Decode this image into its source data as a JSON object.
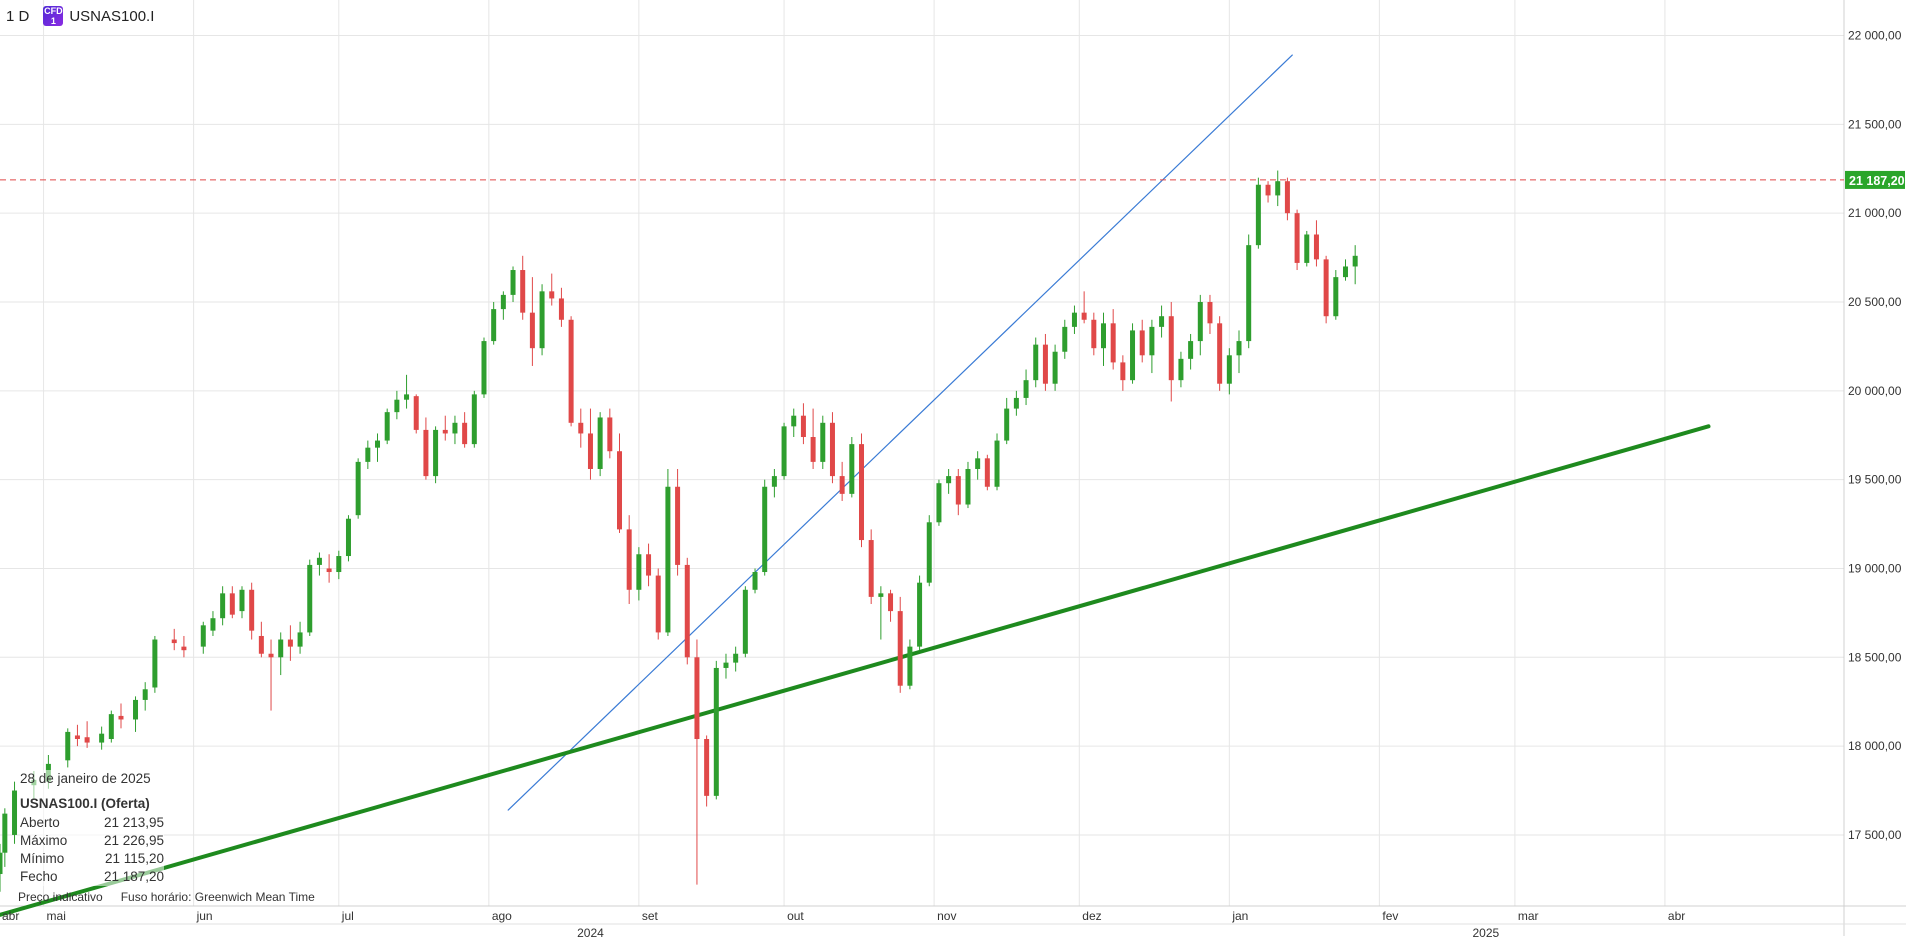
{
  "header": {
    "timeframe": "1 D",
    "symbol_badge": "CFD",
    "symbol": "USNAS100.I"
  },
  "info_panel": {
    "date": "28 de janeiro de 2025",
    "instrument": "USNAS100.I (Oferta)",
    "rows": [
      {
        "label": "Aberto",
        "value": "21 213,95"
      },
      {
        "label": "Máximo",
        "value": "21 226,95"
      },
      {
        "label": "Mínimo",
        "value": "21 115,20"
      },
      {
        "label": "Fecho",
        "value": "21 187,20"
      }
    ]
  },
  "footer": {
    "indicative": "Preço indicativo",
    "timezone": "Fuso horário: Greenwich Mean Time"
  },
  "colors": {
    "up": "#2e9e2e",
    "down": "#e04848",
    "trend_blue": "#3a7bd5",
    "trend_green": "#1e8a1e",
    "price_line": "#e04848",
    "price_tag_bg": "#2aa52a",
    "grid": "#e6e6e6"
  },
  "chart_data": {
    "type": "candlestick",
    "y_ticks": [
      17500,
      18000,
      18500,
      19000,
      19500,
      20000,
      20500,
      21000,
      21500,
      22000
    ],
    "y_tick_labels": [
      "17 500,00",
      "18 000,00",
      "18 500,00",
      "19 000,00",
      "19 500,00",
      "20 000,00",
      "20 500,00",
      "21 000,00",
      "21 500,00",
      "22 000,00"
    ],
    "ylim": [
      17100,
      22200
    ],
    "xlim": [
      "2024-04-22",
      "2025-05-08"
    ],
    "x_month_ticks": [
      {
        "date": "2024-05-01",
        "label": "mai"
      },
      {
        "date": "2024-06-01",
        "label": "jun"
      },
      {
        "date": "2024-07-01",
        "label": "jul"
      },
      {
        "date": "2024-08-01",
        "label": "ago"
      },
      {
        "date": "2024-09-01",
        "label": "set"
      },
      {
        "date": "2024-10-01",
        "label": "out"
      },
      {
        "date": "2024-11-01",
        "label": "nov"
      },
      {
        "date": "2024-12-01",
        "label": "dez"
      },
      {
        "date": "2025-01-01",
        "label": "jan"
      },
      {
        "date": "2025-02-01",
        "label": "fev"
      },
      {
        "date": "2025-03-01",
        "label": "mar"
      },
      {
        "date": "2025-04-01",
        "label": "abr"
      }
    ],
    "x_edge_label": {
      "date": "2024-04-22",
      "label": "abr"
    },
    "x_year_ticks": [
      {
        "date": "2024-08-22",
        "label": "2024"
      },
      {
        "date": "2025-02-23",
        "label": "2025"
      }
    ],
    "last_price": 21187.2,
    "last_price_label": "21 187,20",
    "trendlines": [
      {
        "name": "short-trend",
        "color": "blue",
        "from": [
          "2024-08-05",
          17640
        ],
        "to": [
          "2025-01-14",
          21890
        ]
      },
      {
        "name": "long-trend",
        "color": "green",
        "from": [
          "2024-04-22",
          17050
        ],
        "to": [
          "2025-04-10",
          19800
        ]
      }
    ],
    "candles": [
      {
        "d": "2024-04-22",
        "o": 17280,
        "h": 17450,
        "l": 17180,
        "c": 17400
      },
      {
        "d": "2024-04-23",
        "o": 17400,
        "h": 17650,
        "l": 17320,
        "c": 17620
      },
      {
        "d": "2024-04-25",
        "o": 17500,
        "h": 17800,
        "l": 17450,
        "c": 17750
      },
      {
        "d": "2024-04-29",
        "o": 17780,
        "h": 17860,
        "l": 17700,
        "c": 17810
      },
      {
        "d": "2024-05-02",
        "o": 17800,
        "h": 17950,
        "l": 17760,
        "c": 17900
      },
      {
        "d": "2024-05-06",
        "o": 17920,
        "h": 18100,
        "l": 17880,
        "c": 18080
      },
      {
        "d": "2024-05-08",
        "o": 18060,
        "h": 18120,
        "l": 18000,
        "c": 18040
      },
      {
        "d": "2024-05-10",
        "o": 18050,
        "h": 18140,
        "l": 17990,
        "c": 18020
      },
      {
        "d": "2024-05-13",
        "o": 18020,
        "h": 18110,
        "l": 17980,
        "c": 18070
      },
      {
        "d": "2024-05-15",
        "o": 18040,
        "h": 18200,
        "l": 18020,
        "c": 18180
      },
      {
        "d": "2024-05-17",
        "o": 18170,
        "h": 18240,
        "l": 18100,
        "c": 18150
      },
      {
        "d": "2024-05-20",
        "o": 18150,
        "h": 18280,
        "l": 18080,
        "c": 18260
      },
      {
        "d": "2024-05-22",
        "o": 18260,
        "h": 18360,
        "l": 18200,
        "c": 18320
      },
      {
        "d": "2024-05-24",
        "o": 18330,
        "h": 18620,
        "l": 18300,
        "c": 18600
      },
      {
        "d": "2024-05-28",
        "o": 18600,
        "h": 18660,
        "l": 18540,
        "c": 18580
      },
      {
        "d": "2024-05-30",
        "o": 18560,
        "h": 18620,
        "l": 18500,
        "c": 18540
      },
      {
        "d": "2024-06-03",
        "o": 18560,
        "h": 18700,
        "l": 18520,
        "c": 18680
      },
      {
        "d": "2024-06-05",
        "o": 18650,
        "h": 18760,
        "l": 18620,
        "c": 18720
      },
      {
        "d": "2024-06-07",
        "o": 18720,
        "h": 18900,
        "l": 18680,
        "c": 18860
      },
      {
        "d": "2024-06-09",
        "o": 18860,
        "h": 18900,
        "l": 18720,
        "c": 18740
      },
      {
        "d": "2024-06-11",
        "o": 18760,
        "h": 18900,
        "l": 18720,
        "c": 18880
      },
      {
        "d": "2024-06-13",
        "o": 18880,
        "h": 18920,
        "l": 18600,
        "c": 18650
      },
      {
        "d": "2024-06-15",
        "o": 18620,
        "h": 18700,
        "l": 18500,
        "c": 18520
      },
      {
        "d": "2024-06-17",
        "o": 18520,
        "h": 18600,
        "l": 18200,
        "c": 18500
      },
      {
        "d": "2024-06-19",
        "o": 18500,
        "h": 18640,
        "l": 18400,
        "c": 18600
      },
      {
        "d": "2024-06-21",
        "o": 18600,
        "h": 18680,
        "l": 18480,
        "c": 18560
      },
      {
        "d": "2024-06-23",
        "o": 18560,
        "h": 18700,
        "l": 18520,
        "c": 18640
      },
      {
        "d": "2024-06-25",
        "o": 18640,
        "h": 19050,
        "l": 18620,
        "c": 19020
      },
      {
        "d": "2024-06-27",
        "o": 19020,
        "h": 19090,
        "l": 18960,
        "c": 19060
      },
      {
        "d": "2024-06-29",
        "o": 19000,
        "h": 19080,
        "l": 18920,
        "c": 18980
      },
      {
        "d": "2024-07-01",
        "o": 18980,
        "h": 19100,
        "l": 18940,
        "c": 19070
      },
      {
        "d": "2024-07-03",
        "o": 19070,
        "h": 19300,
        "l": 19040,
        "c": 19280
      },
      {
        "d": "2024-07-05",
        "o": 19300,
        "h": 19620,
        "l": 19280,
        "c": 19600
      },
      {
        "d": "2024-07-07",
        "o": 19600,
        "h": 19720,
        "l": 19560,
        "c": 19680
      },
      {
        "d": "2024-07-09",
        "o": 19680,
        "h": 19760,
        "l": 19600,
        "c": 19720
      },
      {
        "d": "2024-07-11",
        "o": 19720,
        "h": 19900,
        "l": 19700,
        "c": 19880
      },
      {
        "d": "2024-07-13",
        "o": 19880,
        "h": 20000,
        "l": 19840,
        "c": 19950
      },
      {
        "d": "2024-07-15",
        "o": 19950,
        "h": 20090,
        "l": 19900,
        "c": 19980
      },
      {
        "d": "2024-07-17",
        "o": 19970,
        "h": 19980,
        "l": 19760,
        "c": 19780
      },
      {
        "d": "2024-07-19",
        "o": 19780,
        "h": 19850,
        "l": 19500,
        "c": 19520
      },
      {
        "d": "2024-07-21",
        "o": 19520,
        "h": 19800,
        "l": 19480,
        "c": 19780
      },
      {
        "d": "2024-07-23",
        "o": 19780,
        "h": 19860,
        "l": 19720,
        "c": 19760
      },
      {
        "d": "2024-07-25",
        "o": 19760,
        "h": 19860,
        "l": 19700,
        "c": 19820
      },
      {
        "d": "2024-07-27",
        "o": 19820,
        "h": 19880,
        "l": 19680,
        "c": 19700
      },
      {
        "d": "2024-07-29",
        "o": 19700,
        "h": 20000,
        "l": 19680,
        "c": 19980
      },
      {
        "d": "2024-07-31",
        "o": 19980,
        "h": 20300,
        "l": 19960,
        "c": 20280
      },
      {
        "d": "2024-08-02",
        "o": 20280,
        "h": 20500,
        "l": 20260,
        "c": 20460
      },
      {
        "d": "2024-08-04",
        "o": 20460,
        "h": 20560,
        "l": 20400,
        "c": 20540
      },
      {
        "d": "2024-08-06",
        "o": 20540,
        "h": 20700,
        "l": 20500,
        "c": 20680
      },
      {
        "d": "2024-08-08",
        "o": 20680,
        "h": 20760,
        "l": 20400,
        "c": 20440
      },
      {
        "d": "2024-08-10",
        "o": 20440,
        "h": 20640,
        "l": 20140,
        "c": 20240
      },
      {
        "d": "2024-08-12",
        "o": 20240,
        "h": 20600,
        "l": 20200,
        "c": 20560
      },
      {
        "d": "2024-08-14",
        "o": 20560,
        "h": 20660,
        "l": 20480,
        "c": 20520
      },
      {
        "d": "2024-08-16",
        "o": 20520,
        "h": 20580,
        "l": 20360,
        "c": 20400
      },
      {
        "d": "2024-08-18",
        "o": 20400,
        "h": 20420,
        "l": 19800,
        "c": 19820
      },
      {
        "d": "2024-08-20",
        "o": 19820,
        "h": 19900,
        "l": 19680,
        "c": 19760
      },
      {
        "d": "2024-08-22",
        "o": 19760,
        "h": 19900,
        "l": 19500,
        "c": 19560
      },
      {
        "d": "2024-08-24",
        "o": 19560,
        "h": 19880,
        "l": 19520,
        "c": 19850
      },
      {
        "d": "2024-08-26",
        "o": 19850,
        "h": 19900,
        "l": 19620,
        "c": 19660
      },
      {
        "d": "2024-08-28",
        "o": 19660,
        "h": 19760,
        "l": 19200,
        "c": 19220
      },
      {
        "d": "2024-08-30",
        "o": 19220,
        "h": 19300,
        "l": 18800,
        "c": 18880
      },
      {
        "d": "2024-09-01",
        "o": 18880,
        "h": 19120,
        "l": 18820,
        "c": 19080
      },
      {
        "d": "2024-09-03",
        "o": 19080,
        "h": 19140,
        "l": 18900,
        "c": 18960
      },
      {
        "d": "2024-09-05",
        "o": 18960,
        "h": 19000,
        "l": 18600,
        "c": 18640
      },
      {
        "d": "2024-09-07",
        "o": 18640,
        "h": 19560,
        "l": 18620,
        "c": 19460
      },
      {
        "d": "2024-09-09",
        "o": 19460,
        "h": 19560,
        "l": 18960,
        "c": 19020
      },
      {
        "d": "2024-09-11",
        "o": 19020,
        "h": 19060,
        "l": 18460,
        "c": 18500
      },
      {
        "d": "2024-09-13",
        "o": 18500,
        "h": 18600,
        "l": 17220,
        "c": 18040
      },
      {
        "d": "2024-09-15",
        "o": 18040,
        "h": 18060,
        "l": 17660,
        "c": 17720
      },
      {
        "d": "2024-09-17",
        "o": 17720,
        "h": 18480,
        "l": 17700,
        "c": 18440
      },
      {
        "d": "2024-09-19",
        "o": 18440,
        "h": 18520,
        "l": 18380,
        "c": 18470
      },
      {
        "d": "2024-09-21",
        "o": 18470,
        "h": 18560,
        "l": 18420,
        "c": 18520
      },
      {
        "d": "2024-09-23",
        "o": 18520,
        "h": 18900,
        "l": 18500,
        "c": 18880
      },
      {
        "d": "2024-09-25",
        "o": 18880,
        "h": 19000,
        "l": 18860,
        "c": 18980
      },
      {
        "d": "2024-09-27",
        "o": 18980,
        "h": 19500,
        "l": 18960,
        "c": 19460
      },
      {
        "d": "2024-09-29",
        "o": 19460,
        "h": 19560,
        "l": 19400,
        "c": 19520
      },
      {
        "d": "2024-10-01",
        "o": 19520,
        "h": 19820,
        "l": 19500,
        "c": 19800
      },
      {
        "d": "2024-10-03",
        "o": 19800,
        "h": 19900,
        "l": 19740,
        "c": 19860
      },
      {
        "d": "2024-10-05",
        "o": 19860,
        "h": 19930,
        "l": 19700,
        "c": 19740
      },
      {
        "d": "2024-10-07",
        "o": 19740,
        "h": 19900,
        "l": 19560,
        "c": 19600
      },
      {
        "d": "2024-10-09",
        "o": 19600,
        "h": 19860,
        "l": 19560,
        "c": 19820
      },
      {
        "d": "2024-10-11",
        "o": 19820,
        "h": 19880,
        "l": 19480,
        "c": 19520
      },
      {
        "d": "2024-10-13",
        "o": 19520,
        "h": 19600,
        "l": 19380,
        "c": 19420
      },
      {
        "d": "2024-10-15",
        "o": 19420,
        "h": 19740,
        "l": 19400,
        "c": 19700
      },
      {
        "d": "2024-10-17",
        "o": 19700,
        "h": 19760,
        "l": 19120,
        "c": 19160
      },
      {
        "d": "2024-10-19",
        "o": 19160,
        "h": 19220,
        "l": 18800,
        "c": 18840
      },
      {
        "d": "2024-10-21",
        "o": 18840,
        "h": 18900,
        "l": 18600,
        "c": 18860
      },
      {
        "d": "2024-10-23",
        "o": 18860,
        "h": 18880,
        "l": 18700,
        "c": 18760
      },
      {
        "d": "2024-10-25",
        "o": 18760,
        "h": 18840,
        "l": 18300,
        "c": 18340
      },
      {
        "d": "2024-10-27",
        "o": 18340,
        "h": 18600,
        "l": 18320,
        "c": 18560
      },
      {
        "d": "2024-10-29",
        "o": 18560,
        "h": 18960,
        "l": 18540,
        "c": 18920
      },
      {
        "d": "2024-10-31",
        "o": 18920,
        "h": 19300,
        "l": 18900,
        "c": 19260
      },
      {
        "d": "2024-11-02",
        "o": 19260,
        "h": 19500,
        "l": 19240,
        "c": 19480
      },
      {
        "d": "2024-11-04",
        "o": 19480,
        "h": 19560,
        "l": 19420,
        "c": 19520
      },
      {
        "d": "2024-11-06",
        "o": 19520,
        "h": 19560,
        "l": 19300,
        "c": 19360
      },
      {
        "d": "2024-11-08",
        "o": 19360,
        "h": 19600,
        "l": 19340,
        "c": 19560
      },
      {
        "d": "2024-11-10",
        "o": 19560,
        "h": 19660,
        "l": 19500,
        "c": 19620
      },
      {
        "d": "2024-11-12",
        "o": 19620,
        "h": 19640,
        "l": 19440,
        "c": 19460
      },
      {
        "d": "2024-11-14",
        "o": 19460,
        "h": 19760,
        "l": 19440,
        "c": 19720
      },
      {
        "d": "2024-11-16",
        "o": 19720,
        "h": 19960,
        "l": 19700,
        "c": 19900
      },
      {
        "d": "2024-11-18",
        "o": 19900,
        "h": 20000,
        "l": 19860,
        "c": 19960
      },
      {
        "d": "2024-11-20",
        "o": 19960,
        "h": 20120,
        "l": 19920,
        "c": 20060
      },
      {
        "d": "2024-11-22",
        "o": 20060,
        "h": 20300,
        "l": 20020,
        "c": 20260
      },
      {
        "d": "2024-11-24",
        "o": 20260,
        "h": 20320,
        "l": 20000,
        "c": 20040
      },
      {
        "d": "2024-11-26",
        "o": 20040,
        "h": 20260,
        "l": 20000,
        "c": 20220
      },
      {
        "d": "2024-11-28",
        "o": 20220,
        "h": 20400,
        "l": 20180,
        "c": 20360
      },
      {
        "d": "2024-11-30",
        "o": 20360,
        "h": 20480,
        "l": 20320,
        "c": 20440
      },
      {
        "d": "2024-12-02",
        "o": 20440,
        "h": 20560,
        "l": 20380,
        "c": 20400
      },
      {
        "d": "2024-12-04",
        "o": 20400,
        "h": 20440,
        "l": 20200,
        "c": 20240
      },
      {
        "d": "2024-12-06",
        "o": 20240,
        "h": 20440,
        "l": 20140,
        "c": 20380
      },
      {
        "d": "2024-12-08",
        "o": 20380,
        "h": 20460,
        "l": 20120,
        "c": 20160
      },
      {
        "d": "2024-12-10",
        "o": 20160,
        "h": 20200,
        "l": 20000,
        "c": 20060
      },
      {
        "d": "2024-12-12",
        "o": 20060,
        "h": 20380,
        "l": 20040,
        "c": 20340
      },
      {
        "d": "2024-12-14",
        "o": 20340,
        "h": 20400,
        "l": 20160,
        "c": 20200
      },
      {
        "d": "2024-12-16",
        "o": 20200,
        "h": 20400,
        "l": 20100,
        "c": 20360
      },
      {
        "d": "2024-12-18",
        "o": 20360,
        "h": 20480,
        "l": 20300,
        "c": 20420
      },
      {
        "d": "2024-12-20",
        "o": 20420,
        "h": 20500,
        "l": 19940,
        "c": 20060
      },
      {
        "d": "2024-12-22",
        "o": 20060,
        "h": 20220,
        "l": 20020,
        "c": 20180
      },
      {
        "d": "2024-12-24",
        "o": 20180,
        "h": 20320,
        "l": 20120,
        "c": 20280
      },
      {
        "d": "2024-12-26",
        "o": 20280,
        "h": 20540,
        "l": 20200,
        "c": 20500
      },
      {
        "d": "2024-12-28",
        "o": 20500,
        "h": 20540,
        "l": 20320,
        "c": 20380
      },
      {
        "d": "2024-12-30",
        "o": 20380,
        "h": 20420,
        "l": 20000,
        "c": 20040
      },
      {
        "d": "2025-01-01",
        "o": 20040,
        "h": 20240,
        "l": 19980,
        "c": 20200
      },
      {
        "d": "2025-01-03",
        "o": 20200,
        "h": 20340,
        "l": 20100,
        "c": 20280
      },
      {
        "d": "2025-01-05",
        "o": 20280,
        "h": 20880,
        "l": 20240,
        "c": 20820
      },
      {
        "d": "2025-01-07",
        "o": 20820,
        "h": 21200,
        "l": 20800,
        "c": 21160
      },
      {
        "d": "2025-01-09",
        "o": 21160,
        "h": 21180,
        "l": 21060,
        "c": 21100
      },
      {
        "d": "2025-01-11",
        "o": 21100,
        "h": 21240,
        "l": 21040,
        "c": 21180
      },
      {
        "d": "2025-01-13",
        "o": 21180,
        "h": 21200,
        "l": 20960,
        "c": 21000
      },
      {
        "d": "2025-01-15",
        "o": 21000,
        "h": 21020,
        "l": 20680,
        "c": 20720
      },
      {
        "d": "2025-01-17",
        "o": 20720,
        "h": 20900,
        "l": 20700,
        "c": 20880
      },
      {
        "d": "2025-01-19",
        "o": 20880,
        "h": 20960,
        "l": 20700,
        "c": 20740
      },
      {
        "d": "2025-01-21",
        "o": 20740,
        "h": 20760,
        "l": 20380,
        "c": 20420
      },
      {
        "d": "2025-01-23",
        "o": 20420,
        "h": 20680,
        "l": 20400,
        "c": 20640
      },
      {
        "d": "2025-01-25",
        "o": 20640,
        "h": 20740,
        "l": 20620,
        "c": 20700
      },
      {
        "d": "2025-01-27",
        "o": 20700,
        "h": 20820,
        "l": 20600,
        "c": 20760
      }
    ]
  }
}
